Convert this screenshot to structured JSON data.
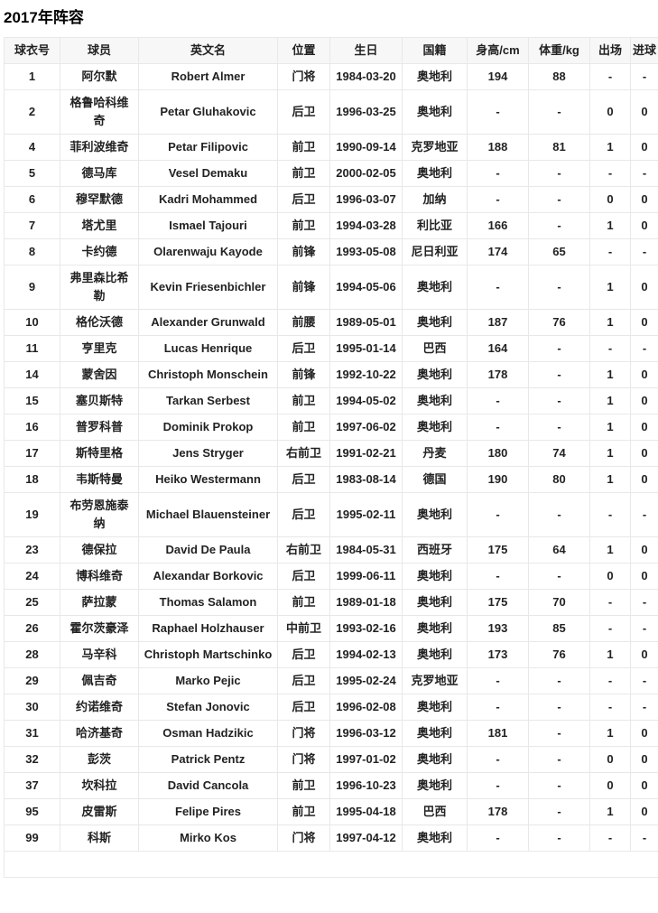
{
  "page": {
    "title": "2017年阵容"
  },
  "colors": {
    "header_bg": "#f7f7f7",
    "border": "#e8e8e8",
    "text": "#222222",
    "title_text": "#000000",
    "row_bg": "#ffffff"
  },
  "table": {
    "columns": [
      {
        "key": "jersey-number",
        "label": "球衣号"
      },
      {
        "key": "player-name",
        "label": "球员"
      },
      {
        "key": "english-name",
        "label": "英文名"
      },
      {
        "key": "position",
        "label": "位置"
      },
      {
        "key": "birthday",
        "label": "生日"
      },
      {
        "key": "nationality",
        "label": "国籍"
      },
      {
        "key": "height",
        "label": "身高/cm"
      },
      {
        "key": "weight",
        "label": "体重/kg"
      },
      {
        "key": "appearances",
        "label": "出场"
      },
      {
        "key": "goals",
        "label": "进球"
      }
    ],
    "rows": [
      [
        "1",
        "阿尔默",
        "Robert Almer",
        "门将",
        "1984-03-20",
        "奥地利",
        "194",
        "88",
        "-",
        "-"
      ],
      [
        "2",
        "格鲁哈科维奇",
        "Petar Gluhakovic",
        "后卫",
        "1996-03-25",
        "奥地利",
        "-",
        "-",
        "0",
        "0"
      ],
      [
        "4",
        "菲利波维奇",
        "Petar Filipovic",
        "前卫",
        "1990-09-14",
        "克罗地亚",
        "188",
        "81",
        "1",
        "0"
      ],
      [
        "5",
        "德马库",
        "Vesel Demaku",
        "前卫",
        "2000-02-05",
        "奥地利",
        "-",
        "-",
        "-",
        "-"
      ],
      [
        "6",
        "穆罕默德",
        "Kadri Mohammed",
        "后卫",
        "1996-03-07",
        "加纳",
        "-",
        "-",
        "0",
        "0"
      ],
      [
        "7",
        "塔尤里",
        "Ismael Tajouri",
        "前卫",
        "1994-03-28",
        "利比亚",
        "166",
        "-",
        "1",
        "0"
      ],
      [
        "8",
        "卡约德",
        "Olarenwaju Kayode",
        "前锋",
        "1993-05-08",
        "尼日利亚",
        "174",
        "65",
        "-",
        "-"
      ],
      [
        "9",
        "弗里森比希勒",
        "Kevin Friesenbichler",
        "前锋",
        "1994-05-06",
        "奥地利",
        "-",
        "-",
        "1",
        "0"
      ],
      [
        "10",
        "格伦沃德",
        "Alexander Grunwald",
        "前腰",
        "1989-05-01",
        "奥地利",
        "187",
        "76",
        "1",
        "0"
      ],
      [
        "11",
        "亨里克",
        "Lucas Henrique",
        "后卫",
        "1995-01-14",
        "巴西",
        "164",
        "-",
        "-",
        "-"
      ],
      [
        "14",
        "蒙舍因",
        "Christoph Monschein",
        "前锋",
        "1992-10-22",
        "奥地利",
        "178",
        "-",
        "1",
        "0"
      ],
      [
        "15",
        "塞贝斯特",
        "Tarkan Serbest",
        "前卫",
        "1994-05-02",
        "奥地利",
        "-",
        "-",
        "1",
        "0"
      ],
      [
        "16",
        "普罗科普",
        "Dominik Prokop",
        "前卫",
        "1997-06-02",
        "奥地利",
        "-",
        "-",
        "1",
        "0"
      ],
      [
        "17",
        "斯特里格",
        "Jens Stryger",
        "右前卫",
        "1991-02-21",
        "丹麦",
        "180",
        "74",
        "1",
        "0"
      ],
      [
        "18",
        "韦斯特曼",
        "Heiko Westermann",
        "后卫",
        "1983-08-14",
        "德国",
        "190",
        "80",
        "1",
        "0"
      ],
      [
        "19",
        "布劳恩施泰纳",
        "Michael Blauensteiner",
        "后卫",
        "1995-02-11",
        "奥地利",
        "-",
        "-",
        "-",
        "-"
      ],
      [
        "23",
        "德保拉",
        "David De Paula",
        "右前卫",
        "1984-05-31",
        "西班牙",
        "175",
        "64",
        "1",
        "0"
      ],
      [
        "24",
        "博科维奇",
        "Alexandar Borkovic",
        "后卫",
        "1999-06-11",
        "奥地利",
        "-",
        "-",
        "0",
        "0"
      ],
      [
        "25",
        "萨拉蒙",
        "Thomas Salamon",
        "前卫",
        "1989-01-18",
        "奥地利",
        "175",
        "70",
        "-",
        "-"
      ],
      [
        "26",
        "霍尔茨豪泽",
        "Raphael Holzhauser",
        "中前卫",
        "1993-02-16",
        "奥地利",
        "193",
        "85",
        "-",
        "-"
      ],
      [
        "28",
        "马辛科",
        "Christoph Martschinko",
        "后卫",
        "1994-02-13",
        "奥地利",
        "173",
        "76",
        "1",
        "0"
      ],
      [
        "29",
        "佩吉奇",
        "Marko Pejic",
        "后卫",
        "1995-02-24",
        "克罗地亚",
        "-",
        "-",
        "-",
        "-"
      ],
      [
        "30",
        "约诺维奇",
        "Stefan Jonovic",
        "后卫",
        "1996-02-08",
        "奥地利",
        "-",
        "-",
        "-",
        "-"
      ],
      [
        "31",
        "哈济基奇",
        "Osman Hadzikic",
        "门将",
        "1996-03-12",
        "奥地利",
        "181",
        "-",
        "1",
        "0"
      ],
      [
        "32",
        "彭茨",
        "Patrick Pentz",
        "门将",
        "1997-01-02",
        "奥地利",
        "-",
        "-",
        "0",
        "0"
      ],
      [
        "37",
        "坎科拉",
        "David Cancola",
        "前卫",
        "1996-10-23",
        "奥地利",
        "-",
        "-",
        "0",
        "0"
      ],
      [
        "95",
        "皮雷斯",
        "Felipe Pires",
        "前卫",
        "1995-04-18",
        "巴西",
        "178",
        "-",
        "1",
        "0"
      ],
      [
        "99",
        "科斯",
        "Mirko Kos",
        "门将",
        "1997-04-12",
        "奥地利",
        "-",
        "-",
        "-",
        "-"
      ]
    ],
    "empty_footer_row": ""
  }
}
